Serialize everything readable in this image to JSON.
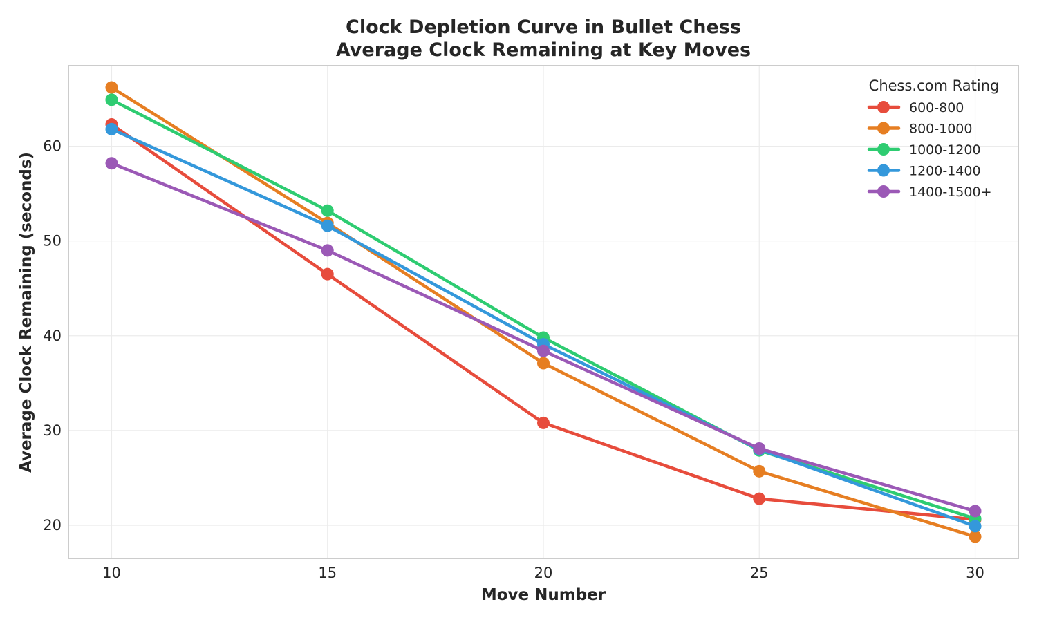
{
  "chart_data": {
    "type": "line",
    "title_line1": "Clock Depletion Curve in Bullet Chess",
    "title_line2": "Average Clock Remaining at Key Moves",
    "xlabel": "Move Number",
    "ylabel": "Average Clock Remaining (seconds)",
    "x": [
      10,
      15,
      20,
      25,
      30
    ],
    "x_ticks": [
      10,
      15,
      20,
      25,
      30
    ],
    "y_ticks": [
      20,
      30,
      40,
      50,
      60
    ],
    "xlim": [
      9,
      31
    ],
    "ylim": [
      16.5,
      68.5
    ],
    "grid": true,
    "legend_title": "Chess.com Rating",
    "legend_position": "top-right",
    "series": [
      {
        "name": "600-800",
        "color": "#e74c3c",
        "values": [
          62.3,
          46.5,
          30.8,
          22.8,
          20.6
        ]
      },
      {
        "name": "800-1000",
        "color": "#e67e22",
        "values": [
          66.2,
          51.9,
          37.1,
          25.7,
          18.8
        ]
      },
      {
        "name": "1000-1200",
        "color": "#2ecc71",
        "values": [
          64.9,
          53.2,
          39.8,
          27.9,
          20.7
        ]
      },
      {
        "name": "1200-1400",
        "color": "#3498db",
        "values": [
          61.8,
          51.6,
          39.1,
          28.0,
          19.9
        ]
      },
      {
        "name": "1400-1500+",
        "color": "#9b59b6",
        "values": [
          58.2,
          49.0,
          38.4,
          28.1,
          21.5
        ]
      }
    ]
  }
}
